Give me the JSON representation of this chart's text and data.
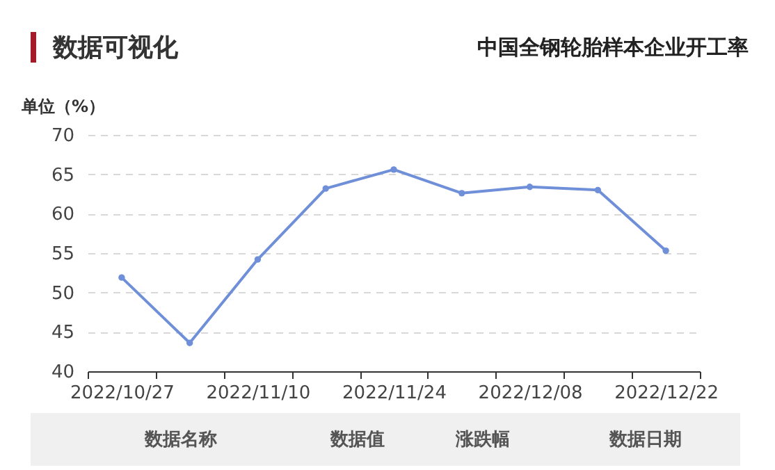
{
  "chart_data": {
    "type": "line",
    "title": "数据可视化",
    "subtitle": "中国全钢轮胎样本企业开工率",
    "ylabel": "单位（%）",
    "categories": [
      "2022/10/27",
      null,
      "2022/11/10",
      null,
      "2022/11/24",
      null,
      "2022/12/08",
      null,
      "2022/12/22"
    ],
    "series": [
      {
        "color": "#6f8fd8",
        "values": [
          51.9,
          43.6,
          54.2,
          63.2,
          65.6,
          62.6,
          63.4,
          63.0,
          55.3
        ]
      }
    ],
    "ylim": [
      40,
      70
    ],
    "yticks": [
      40,
      45,
      50,
      55,
      60,
      65,
      70
    ],
    "grid": "y",
    "marker": "circle",
    "line_style": "solid",
    "annotations": [
      "数据名称",
      "数据值",
      "涨跌幅",
      "数据日期"
    ]
  }
}
